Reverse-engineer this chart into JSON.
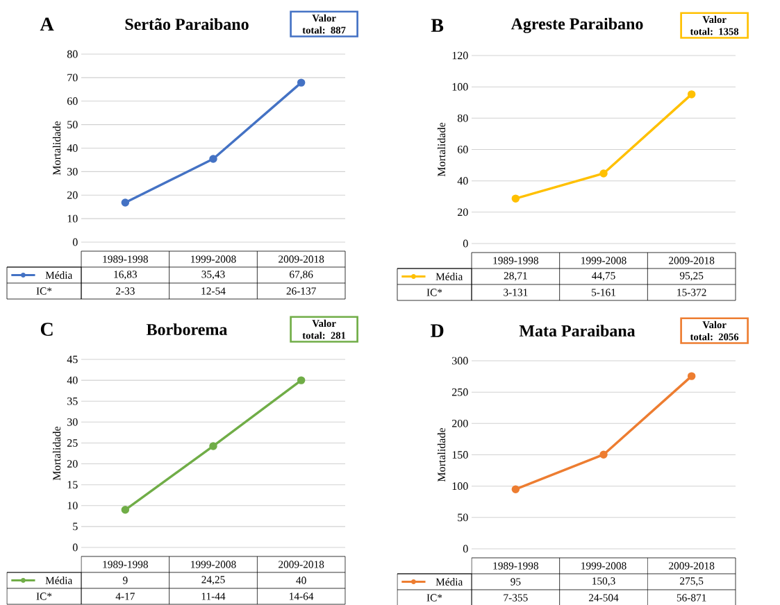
{
  "chart_data": [
    {
      "type": "line",
      "title": "Sertão Paraibano",
      "ylabel": "Mortalidade",
      "categories": [
        "1989-1998",
        "1999-2008",
        "2009-2018"
      ],
      "series": [
        {
          "name": "Média",
          "color": "#4472c4",
          "values": [
            16.83,
            35.43,
            67.86
          ],
          "value_labels": [
            "16,83",
            "35,43",
            "67,86"
          ]
        }
      ],
      "ylim": [
        0,
        80
      ],
      "yticks": [
        0,
        10,
        20,
        30,
        40,
        50,
        60,
        70,
        80
      ],
      "grid": "y",
      "legend": "bottom left",
      "marker": "circle",
      "line_style": "solid",
      "annotations": [
        "A",
        "Valor total: 887",
        "IC*",
        "2-33",
        "12-54",
        "26-137"
      ]
    },
    {
      "type": "line",
      "title": "Agreste Paraibano",
      "ylabel": "Mortalidade",
      "categories": [
        "1989-1998",
        "1999-2008",
        "2009-2018"
      ],
      "series": [
        {
          "name": "Média",
          "color": "#ffc000",
          "values": [
            28.71,
            44.75,
            95.25
          ],
          "value_labels": [
            "28,71",
            "44,75",
            "95,25"
          ]
        }
      ],
      "ylim": [
        0,
        120
      ],
      "yticks": [
        0,
        20,
        40,
        60,
        80,
        100,
        120
      ],
      "grid": "y",
      "legend": "bottom left",
      "marker": "circle",
      "line_style": "solid",
      "annotations": [
        "B",
        "Valor total: 1358",
        "IC*",
        "3-131",
        "5-161",
        "15-372"
      ]
    },
    {
      "type": "line",
      "title": "Borborema",
      "ylabel": "Mortalidade",
      "categories": [
        "1989-1998",
        "1999-2008",
        "2009-2018"
      ],
      "series": [
        {
          "name": "Média",
          "color": "#70ad47",
          "values": [
            9,
            24.25,
            40
          ],
          "value_labels": [
            "9",
            "24,25",
            "40"
          ]
        }
      ],
      "ylim": [
        0,
        45
      ],
      "yticks": [
        0,
        5,
        10,
        15,
        20,
        25,
        30,
        35,
        40,
        45
      ],
      "grid": "y",
      "legend": "bottom left",
      "marker": "circle",
      "line_style": "solid",
      "annotations": [
        "C",
        "Valor total: 281",
        "IC*",
        "4-17",
        "11-44",
        "14-64"
      ]
    },
    {
      "type": "line",
      "title": "Mata Paraibana",
      "ylabel": "Mortalidade",
      "categories": [
        "1989-1998",
        "1999-2008",
        "2009-2018"
      ],
      "series": [
        {
          "name": "Média",
          "color": "#ed7d31",
          "values": [
            95,
            150.3,
            275.5
          ],
          "value_labels": [
            "95",
            "150,3",
            "275,5"
          ]
        }
      ],
      "ylim": [
        0,
        300
      ],
      "yticks": [
        0,
        50,
        100,
        150,
        200,
        250,
        300
      ],
      "grid": "y",
      "legend": "bottom left",
      "marker": "circle",
      "line_style": "solid",
      "annotations": [
        "D",
        "Valor total: 2056",
        "IC*",
        "7-355",
        "24-504",
        "56-871"
      ]
    }
  ]
}
